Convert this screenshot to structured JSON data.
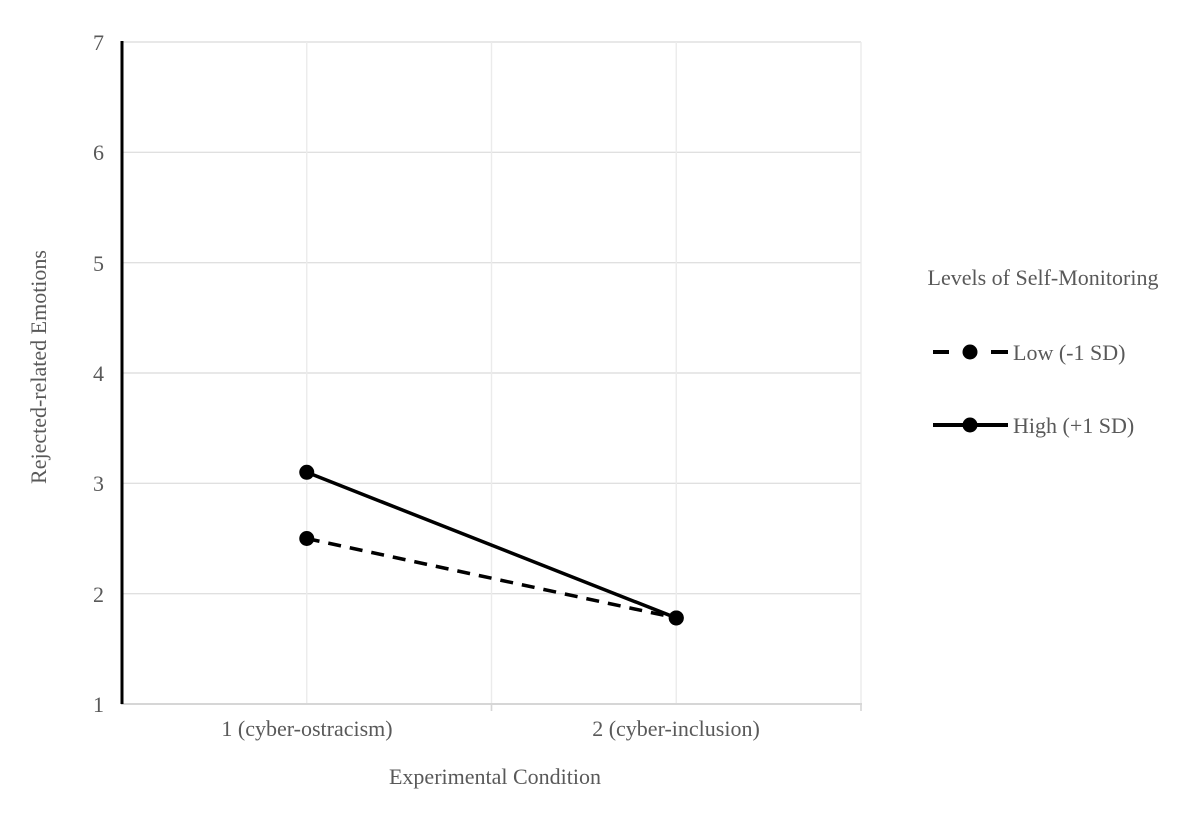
{
  "figure_label": "Line chart of rejected-related emotions by experimental condition and self-monitoring level",
  "colors": {
    "series": "#000000",
    "text": "#595959",
    "gridline_horizontal": "#e0e0e0",
    "gridline_vertical": "#ebebeb",
    "axis_left": "#000000",
    "axis_bottom": "#d6d6d6",
    "background": "#ffffff"
  },
  "chart_data": {
    "type": "line",
    "title": "",
    "xlabel": "Experimental Condition",
    "ylabel": "Rejected-related Emotions",
    "categories": [
      "1 (cyber-ostracism)",
      "2 (cyber-inclusion)"
    ],
    "yticks": [
      7,
      6,
      5,
      4,
      3,
      2,
      1
    ],
    "yticklabels": [
      "7",
      "6",
      "5",
      "4",
      "3",
      "2",
      "1"
    ],
    "ylim": [
      1,
      7
    ],
    "grid": true,
    "legend_title": "Levels of Self-Monitoring",
    "legend_position": "right",
    "series": [
      {
        "name": "Low (-1 SD)",
        "style": "dashed",
        "marker": "circle",
        "color": "#000000",
        "values": [
          2.5,
          1.78
        ]
      },
      {
        "name": "High (+1 SD)",
        "style": "solid",
        "marker": "circle",
        "color": "#000000",
        "values": [
          3.1,
          1.78
        ]
      }
    ]
  }
}
